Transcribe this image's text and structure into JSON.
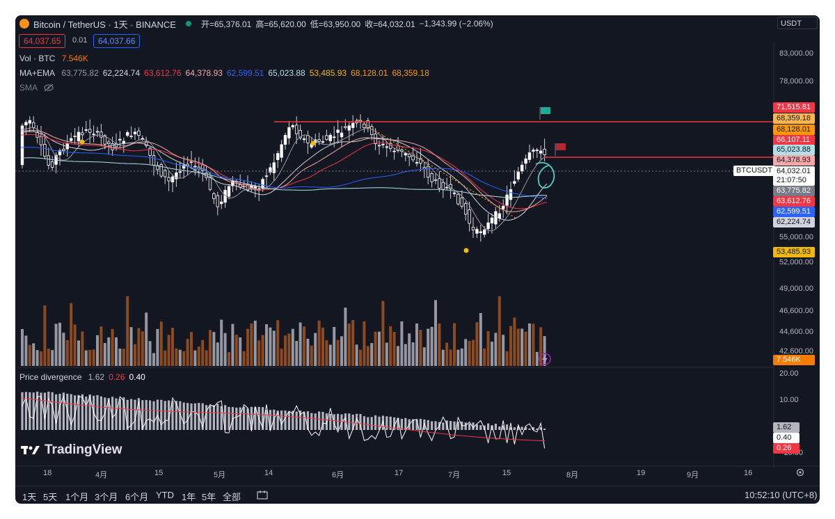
{
  "header": {
    "title": "Bitcoin / TetherUS · 1天 · BINANCE",
    "open_label": "开",
    "open": "=65,376.01",
    "high_label": "高",
    "high": "=65,620.00",
    "low_label": "低",
    "low": "=63,950.00",
    "close_label": "收",
    "close": "=64,032.01",
    "change": "−1,343.99 (−2.06%)",
    "currency": "USDT",
    "sell_price": "64,037.65",
    "spread": "0.01",
    "buy_price": "64,037.66"
  },
  "indicators": {
    "vol_label": "Vol · BTC",
    "vol_value": "7.546K",
    "ma_ema_label": "MA+EMA",
    "ma_ema_values": [
      {
        "value": "63,775.82",
        "color": "#9598a1"
      },
      {
        "value": "62,224.74",
        "color": "#d1d4dc"
      },
      {
        "value": "63,612.76",
        "color": "#f23645"
      },
      {
        "value": "64,378.93",
        "color": "#f7a8a8"
      },
      {
        "value": "62,599.51",
        "color": "#2962ff"
      },
      {
        "value": "65,023.88",
        "color": "#b2dfea"
      },
      {
        "value": "53,485.93",
        "color": "#f0b90b"
      },
      {
        "value": "68,128.01",
        "color": "#ff9800"
      },
      {
        "value": "68,359.18",
        "color": "#ff9800"
      }
    ],
    "sma_label": "SMA",
    "divergence_label": "Price divergence",
    "divergence_values": [
      {
        "value": "1.62",
        "color": "#b2b5be"
      },
      {
        "value": "0.26",
        "color": "#f23645"
      },
      {
        "value": "0.40",
        "color": "#ffffff"
      }
    ]
  },
  "price_axis": [
    "83,000.00",
    "78,000.00",
    "55,000.00",
    "52,000.00",
    "49,000.00",
    "46,600.00",
    "44,600.00",
    "42,600.00"
  ],
  "price_labels": [
    {
      "text": "71,515.81",
      "bg": "#f23645",
      "fg": "#ffffff"
    },
    {
      "text": "68,359.18",
      "bg": "#ffb74d",
      "fg": "#131722"
    },
    {
      "text": "68,128.01",
      "bg": "#ff9800",
      "fg": "#131722"
    },
    {
      "text": "66,107.11",
      "bg": "#f23645",
      "fg": "#ffffff"
    },
    {
      "text": "65,023.88",
      "bg": "#b2dfea",
      "fg": "#131722"
    },
    {
      "text": "64,378.93",
      "bg": "#f7a8a8",
      "fg": "#131722"
    },
    {
      "text": "64,032.01",
      "bg": "#ffffff",
      "fg": "#131722"
    },
    {
      "text": "21:07:50",
      "bg": "#ffffff",
      "fg": "#131722"
    },
    {
      "text": "63,775.82",
      "bg": "#787b86",
      "fg": "#ffffff"
    },
    {
      "text": "63,612.76",
      "bg": "#f23645",
      "fg": "#ffffff"
    },
    {
      "text": "62,599.51",
      "bg": "#2962ff",
      "fg": "#ffffff"
    },
    {
      "text": "62,224.74",
      "bg": "#d1d4dc",
      "fg": "#131722"
    },
    {
      "text": "53,485.93",
      "bg": "#f0b90b",
      "fg": "#131722"
    },
    {
      "text": "7.546K",
      "bg": "#f57c00",
      "fg": "#ffffff"
    }
  ],
  "symbol_tag": "BTCUSDT",
  "divergence_axis": [
    "20.00",
    "10.00",
    "−10.00"
  ],
  "divergence_labels": [
    {
      "text": "1.62",
      "bg": "#b2b5be",
      "fg": "#131722"
    },
    {
      "text": "0.40",
      "bg": "#ffffff",
      "fg": "#131722"
    },
    {
      "text": "0.26",
      "bg": "#f23645",
      "fg": "#ffffff"
    }
  ],
  "watermark": "TradingView",
  "x_axis": [
    "18",
    "4月",
    "15",
    "5月",
    "14",
    "6月",
    "17",
    "7月",
    "15",
    "8月",
    "19",
    "9月",
    "16"
  ],
  "timeframes": [
    "1天",
    "5天",
    "1个月",
    "3个月",
    "6个月",
    "YTD",
    "1年",
    "5年",
    "全部"
  ],
  "clock": "10:52:10 (UTC+8)",
  "colors": {
    "bg": "#131722",
    "up": "#ffffff",
    "down": "#ffffff",
    "vol_up": "#9598a1",
    "vol_down": "#8d4a1f",
    "hline": "#f23645"
  },
  "icons": {
    "logo": "btc-logo-icon",
    "eye": "eye-off-icon",
    "flag": "flag-icon",
    "settings": "gear-icon",
    "compare": "compare-icon",
    "bolt": "bolt-icon"
  }
}
